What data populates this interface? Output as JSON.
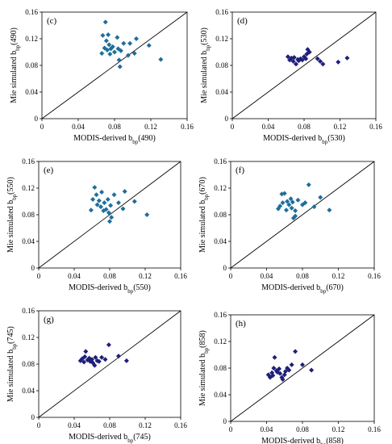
{
  "chart_data": [
    {
      "type": "scatter",
      "panel_label": "(c)",
      "xlabel": "MODIS-derived b",
      "xlabel_sub": "bp",
      "xlabel_tail": "(490)",
      "ylabel": "Mie simulated b",
      "ylabel_sub": "bp",
      "ylabel_tail": "(490)",
      "xlim": [
        0,
        0.16
      ],
      "ylim": [
        0,
        0.16
      ],
      "xticks": [
        "0",
        "0.04",
        "0.08",
        "0.12",
        "0.16"
      ],
      "yticks": [
        "0",
        "0.04",
        "0.08",
        "0.12",
        "0.16"
      ],
      "marker_color": "#1F6E9A",
      "points": [
        [
          0.066,
          0.098
        ],
        [
          0.067,
          0.125
        ],
        [
          0.069,
          0.106
        ],
        [
          0.07,
          0.145
        ],
        [
          0.071,
          0.117
        ],
        [
          0.072,
          0.103
        ],
        [
          0.073,
          0.126
        ],
        [
          0.074,
          0.111
        ],
        [
          0.075,
          0.097
        ],
        [
          0.076,
          0.105
        ],
        [
          0.078,
          0.108
        ],
        [
          0.08,
          0.1
        ],
        [
          0.083,
          0.122
        ],
        [
          0.084,
          0.105
        ],
        [
          0.085,
          0.088
        ],
        [
          0.086,
          0.078
        ],
        [
          0.087,
          0.102
        ],
        [
          0.09,
          0.113
        ],
        [
          0.095,
          0.095
        ],
        [
          0.097,
          0.113
        ],
        [
          0.102,
          0.098
        ],
        [
          0.104,
          0.12
        ],
        [
          0.118,
          0.11
        ],
        [
          0.131,
          0.089
        ]
      ]
    },
    {
      "type": "scatter",
      "panel_label": "(d)",
      "xlabel": "MODIS-derived b",
      "xlabel_sub": "bp",
      "xlabel_tail": "(530)",
      "ylabel": "Mie simulated b",
      "ylabel_sub": "bp",
      "ylabel_tail": "(530)",
      "xlim": [
        0,
        0.16
      ],
      "ylim": [
        0,
        0.16
      ],
      "xticks": [
        "0",
        "0.04",
        "0.08",
        "0.12",
        "0.16"
      ],
      "yticks": [
        "0",
        "0.04",
        "0.08",
        "0.12",
        "0.16"
      ],
      "marker_color": "#1F1F7A",
      "points": [
        [
          0.062,
          0.093
        ],
        [
          0.064,
          0.088
        ],
        [
          0.066,
          0.091
        ],
        [
          0.068,
          0.086
        ],
        [
          0.069,
          0.092
        ],
        [
          0.071,
          0.082
        ],
        [
          0.073,
          0.089
        ],
        [
          0.074,
          0.087
        ],
        [
          0.076,
          0.09
        ],
        [
          0.078,
          0.088
        ],
        [
          0.08,
          0.093
        ],
        [
          0.082,
          0.09
        ],
        [
          0.083,
          0.097
        ],
        [
          0.084,
          0.104
        ],
        [
          0.086,
          0.1
        ],
        [
          0.095,
          0.09
        ],
        [
          0.098,
          0.086
        ],
        [
          0.101,
          0.082
        ],
        [
          0.118,
          0.085
        ],
        [
          0.128,
          0.091
        ]
      ]
    },
    {
      "type": "scatter",
      "panel_label": "(e)",
      "xlabel": "MODIS-derived b",
      "xlabel_sub": "bp",
      "xlabel_tail": "(550)",
      "ylabel": "Mie simulated b",
      "ylabel_sub": "bp",
      "ylabel_tail": "(550)",
      "xlim": [
        0,
        0.16
      ],
      "ylim": [
        0,
        0.16
      ],
      "xticks": [
        "0",
        "0.04",
        "0.08",
        "0.12",
        "0.16"
      ],
      "yticks": [
        "0",
        "0.04",
        "0.08",
        "0.12",
        "0.16"
      ],
      "marker_color": "#1F6E9A",
      "points": [
        [
          0.059,
          0.087
        ],
        [
          0.061,
          0.103
        ],
        [
          0.063,
          0.121
        ],
        [
          0.065,
          0.11
        ],
        [
          0.066,
          0.095
        ],
        [
          0.068,
          0.101
        ],
        [
          0.07,
          0.092
        ],
        [
          0.071,
          0.114
        ],
        [
          0.073,
          0.086
        ],
        [
          0.074,
          0.098
        ],
        [
          0.076,
          0.088
        ],
        [
          0.078,
          0.103
        ],
        [
          0.079,
          0.083
        ],
        [
          0.08,
          0.07
        ],
        [
          0.081,
          0.094
        ],
        [
          0.082,
          0.076
        ],
        [
          0.085,
          0.11
        ],
        [
          0.09,
          0.098
        ],
        [
          0.095,
          0.089
        ],
        [
          0.097,
          0.115
        ],
        [
          0.108,
          0.1
        ],
        [
          0.122,
          0.08
        ]
      ]
    },
    {
      "type": "scatter",
      "panel_label": "(f)",
      "xlabel": "MODIS-derived b",
      "xlabel_sub": "bp",
      "xlabel_tail": "(670)",
      "ylabel": "Mie simulated b",
      "ylabel_sub": "bp",
      "ylabel_tail": "(670)",
      "xlim": [
        0,
        0.16
      ],
      "ylim": [
        0,
        0.16
      ],
      "xticks": [
        "0",
        "0.04",
        "0.08",
        "0.12",
        "0.16"
      ],
      "yticks": [
        "0",
        "0.04",
        "0.08",
        "0.12",
        "0.16"
      ],
      "marker_color": "#1F6E9A",
      "points": [
        [
          0.053,
          0.089
        ],
        [
          0.055,
          0.093
        ],
        [
          0.057,
          0.111
        ],
        [
          0.058,
          0.098
        ],
        [
          0.06,
          0.112
        ],
        [
          0.062,
          0.087
        ],
        [
          0.063,
          0.1
        ],
        [
          0.065,
          0.095
        ],
        [
          0.067,
          0.104
        ],
        [
          0.068,
          0.09
        ],
        [
          0.069,
          0.099
        ],
        [
          0.07,
          0.075
        ],
        [
          0.072,
          0.086
        ],
        [
          0.072,
          0.078
        ],
        [
          0.075,
          0.102
        ],
        [
          0.08,
          0.095
        ],
        [
          0.083,
          0.098
        ],
        [
          0.087,
          0.125
        ],
        [
          0.093,
          0.092
        ],
        [
          0.1,
          0.106
        ],
        [
          0.11,
          0.087
        ]
      ]
    },
    {
      "type": "scatter",
      "panel_label": "(g)",
      "xlabel": "MODIS-derived b",
      "xlabel_sub": "bp",
      "xlabel_tail": "(745)",
      "ylabel": "Mie simulated b",
      "ylabel_sub": "bp",
      "ylabel_tail": "(745)",
      "xlim": [
        0,
        0.16
      ],
      "ylim": [
        0,
        0.16
      ],
      "xticks": [
        "0",
        "0.04",
        "0.08",
        "0.12",
        "0.16"
      ],
      "yticks": [
        "0",
        "0.04",
        "0.08",
        "0.12",
        "0.16"
      ],
      "marker_color": "#1F1F7A",
      "points": [
        [
          0.047,
          0.085
        ],
        [
          0.049,
          0.088
        ],
        [
          0.051,
          0.083
        ],
        [
          0.052,
          0.091
        ],
        [
          0.053,
          0.099
        ],
        [
          0.055,
          0.086
        ],
        [
          0.057,
          0.089
        ],
        [
          0.058,
          0.084
        ],
        [
          0.06,
          0.087
        ],
        [
          0.061,
          0.082
        ],
        [
          0.063,
          0.078
        ],
        [
          0.064,
          0.09
        ],
        [
          0.066,
          0.085
        ],
        [
          0.068,
          0.084
        ],
        [
          0.071,
          0.09
        ],
        [
          0.075,
          0.087
        ],
        [
          0.079,
          0.109
        ],
        [
          0.09,
          0.092
        ],
        [
          0.099,
          0.085
        ]
      ]
    },
    {
      "type": "scatter",
      "panel_label": "(h)",
      "xlabel": "MODIS-derived b",
      "xlabel_sub": "bp",
      "xlabel_tail": "(858)",
      "ylabel": "Mie simulated b",
      "ylabel_sub": "bp",
      "ylabel_tail": "(858)",
      "xlim": [
        0,
        0.16
      ],
      "ylim": [
        0,
        0.16
      ],
      "xticks": [
        "0",
        "0.04",
        "0.08",
        "0.12",
        "0.16"
      ],
      "yticks": [
        "0",
        "0.04",
        "0.08",
        "0.12",
        "0.16"
      ],
      "marker_color": "#1F1F7A",
      "points": [
        [
          0.042,
          0.07
        ],
        [
          0.044,
          0.066
        ],
        [
          0.046,
          0.073
        ],
        [
          0.047,
          0.069
        ],
        [
          0.048,
          0.08
        ],
        [
          0.049,
          0.096
        ],
        [
          0.051,
          0.076
        ],
        [
          0.052,
          0.074
        ],
        [
          0.054,
          0.079
        ],
        [
          0.055,
          0.072
        ],
        [
          0.057,
          0.066
        ],
        [
          0.058,
          0.063
        ],
        [
          0.06,
          0.07
        ],
        [
          0.061,
          0.075
        ],
        [
          0.063,
          0.08
        ],
        [
          0.065,
          0.077
        ],
        [
          0.068,
          0.085
        ],
        [
          0.072,
          0.105
        ],
        [
          0.08,
          0.085
        ],
        [
          0.09,
          0.077
        ]
      ]
    }
  ]
}
